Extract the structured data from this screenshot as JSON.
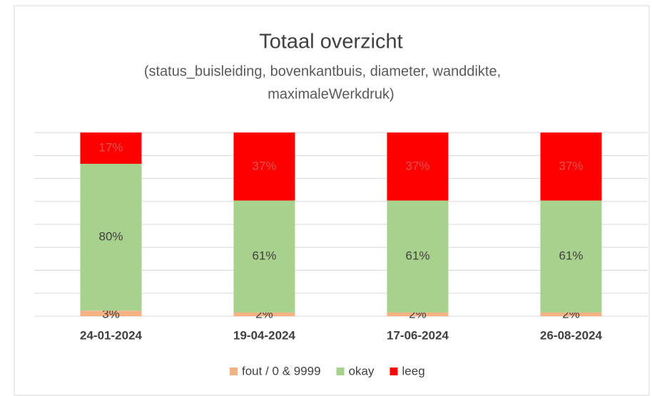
{
  "chart_data": {
    "type": "stacked_bar",
    "title": "Totaal overzicht",
    "subtitle": [
      "(status_buisleiding, bovenkantbuis, diameter, wanddikte,",
      "maximaleWerkdruk)"
    ],
    "categories": [
      "24-01-2024",
      "19-04-2024",
      "17-06-2024",
      "26-08-2024"
    ],
    "series": [
      {
        "name": "fout / 0 & 9999",
        "color": "#f4b183",
        "values": [
          3,
          2,
          2,
          2
        ],
        "value_labels": [
          "3%",
          "2%",
          "2%",
          "2%"
        ]
      },
      {
        "name": "okay",
        "color": "#a9d18e",
        "values": [
          80,
          61,
          61,
          61
        ],
        "value_labels": [
          "80%",
          "61%",
          "61%",
          "61%"
        ]
      },
      {
        "name": "leeg",
        "color": "#ff0000",
        "values": [
          17,
          37,
          37,
          37
        ],
        "value_labels": [
          "17%",
          "37%",
          "37%",
          "37%"
        ]
      }
    ],
    "ylim": [
      0,
      106.25
    ],
    "yticks": [
      0,
      12.5,
      25,
      37.5,
      50,
      62.5,
      75,
      87.5,
      100
    ],
    "grid": true,
    "legend": "bottom"
  }
}
